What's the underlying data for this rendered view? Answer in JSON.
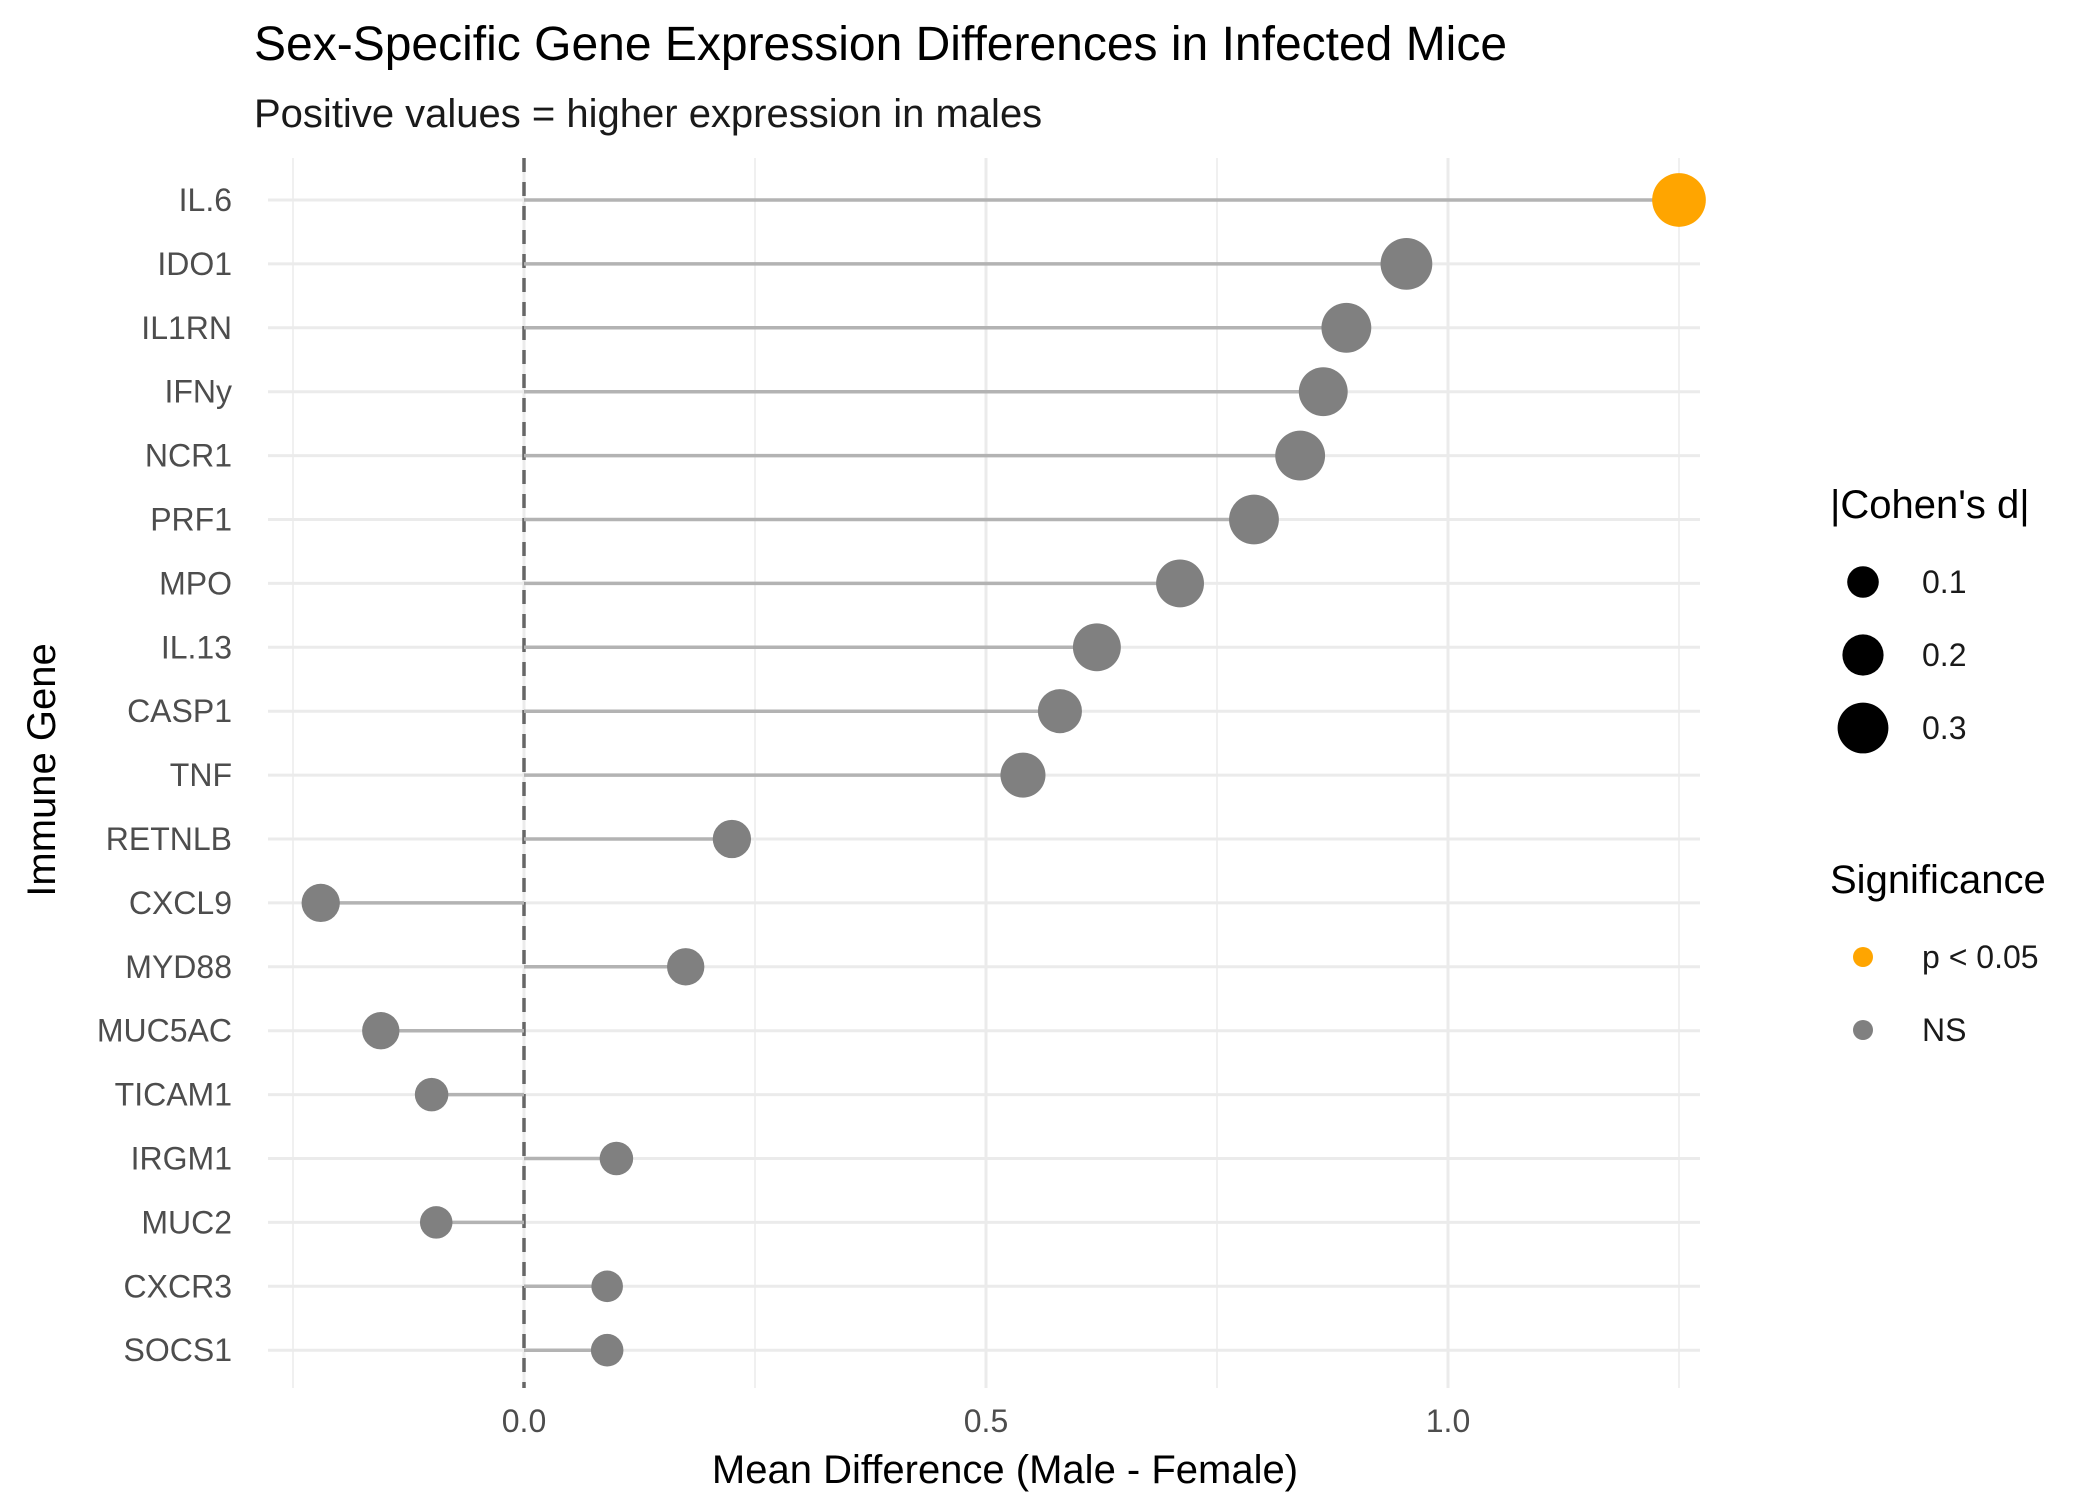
{
  "chart_data": {
    "type": "lollipop",
    "title": "Sex-Specific Gene Expression Differences in Infected Mice",
    "subtitle": "Positive values = higher expression in males",
    "xlabel": "Mean Difference (Male - Female)",
    "ylabel": "Immune Gene",
    "xlim": [
      -0.25,
      1.25
    ],
    "x_ticks": [
      0.0,
      0.5,
      1.0
    ],
    "x_tick_labels": [
      "0.0",
      "0.5",
      "1.0"
    ],
    "x_minor_ticks": [
      -0.25,
      0.25,
      0.75,
      1.25
    ],
    "reference_line": 0,
    "grid": true,
    "legend_position": "right",
    "size_legend": {
      "title": "|Cohen's d|",
      "entries": [
        {
          "label": "0.1",
          "value": 0.1
        },
        {
          "label": "0.2",
          "value": 0.2
        },
        {
          "label": "0.3",
          "value": 0.3
        }
      ]
    },
    "color_legend": {
      "title": "Significance",
      "entries": [
        {
          "label": "p < 0.05",
          "color": "#FFA500"
        },
        {
          "label": "NS",
          "color": "#808080"
        }
      ]
    },
    "genes": [
      {
        "gene": "IL.6",
        "mean_diff": 1.25,
        "cohens_d": 0.33,
        "significance": "p < 0.05"
      },
      {
        "gene": "IDO1",
        "mean_diff": 0.955,
        "cohens_d": 0.31,
        "significance": "NS"
      },
      {
        "gene": "IL1RN",
        "mean_diff": 0.89,
        "cohens_d": 0.29,
        "significance": "NS"
      },
      {
        "gene": "IFNy",
        "mean_diff": 0.865,
        "cohens_d": 0.28,
        "significance": "NS"
      },
      {
        "gene": "NCR1",
        "mean_diff": 0.84,
        "cohens_d": 0.29,
        "significance": "NS"
      },
      {
        "gene": "PRF1",
        "mean_diff": 0.79,
        "cohens_d": 0.29,
        "significance": "NS"
      },
      {
        "gene": "MPO",
        "mean_diff": 0.71,
        "cohens_d": 0.27,
        "significance": "NS"
      },
      {
        "gene": "IL.13",
        "mean_diff": 0.62,
        "cohens_d": 0.27,
        "significance": "NS"
      },
      {
        "gene": "CASP1",
        "mean_diff": 0.58,
        "cohens_d": 0.23,
        "significance": "NS"
      },
      {
        "gene": "TNF",
        "mean_diff": 0.54,
        "cohens_d": 0.24,
        "significance": "NS"
      },
      {
        "gene": "RETNLB",
        "mean_diff": 0.225,
        "cohens_d": 0.17,
        "significance": "NS"
      },
      {
        "gene": "CXCL9",
        "mean_diff": -0.22,
        "cohens_d": 0.17,
        "significance": "NS"
      },
      {
        "gene": "MYD88",
        "mean_diff": 0.175,
        "cohens_d": 0.16,
        "significance": "NS"
      },
      {
        "gene": "MUC5AC",
        "mean_diff": -0.155,
        "cohens_d": 0.16,
        "significance": "NS"
      },
      {
        "gene": "TICAM1",
        "mean_diff": -0.1,
        "cohens_d": 0.12,
        "significance": "NS"
      },
      {
        "gene": "IRGM1",
        "mean_diff": 0.1,
        "cohens_d": 0.12,
        "significance": "NS"
      },
      {
        "gene": "MUC2",
        "mean_diff": -0.095,
        "cohens_d": 0.11,
        "significance": "NS"
      },
      {
        "gene": "CXCR3",
        "mean_diff": 0.09,
        "cohens_d": 0.1,
        "significance": "NS"
      },
      {
        "gene": "SOCS1",
        "mean_diff": 0.09,
        "cohens_d": 0.11,
        "significance": "NS"
      }
    ]
  }
}
